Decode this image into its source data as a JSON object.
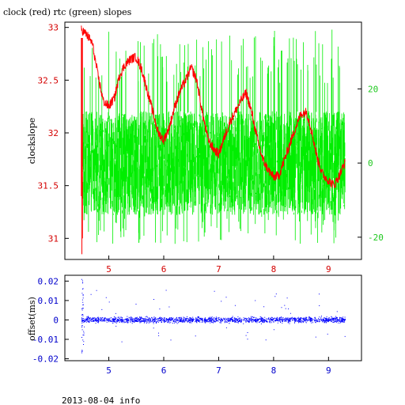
{
  "title": "clock (red) rtc (green) slopes",
  "footer": "2013-08-04 info",
  "colors": {
    "clock": "#ff0000",
    "rtc": "#00ee00",
    "offset": "#0000ff",
    "red_axis": "#d40000",
    "green_axis": "#1ec81e",
    "blue_axis": "#0000cc"
  },
  "chart_data": [
    {
      "type": "line",
      "ylabel": "clockslope",
      "xlim": [
        4.2,
        9.6
      ],
      "x_ticks": [
        "5",
        "6",
        "7",
        "8",
        "9"
      ],
      "ylim_left": [
        30.8,
        33.05
      ],
      "ylim_right": [
        -26,
        38
      ],
      "y_ticks_left": [
        "33",
        "32.5",
        "32",
        "31.5",
        "31"
      ],
      "y_ticks_right": [
        "20",
        "0",
        "-20"
      ],
      "grid": false,
      "series": [
        {
          "name": "clock",
          "axis": "left",
          "x": [
            4.5,
            4.6,
            4.7,
            4.8,
            4.9,
            5.0,
            5.1,
            5.2,
            5.3,
            5.4,
            5.5,
            5.6,
            5.7,
            5.8,
            5.9,
            6.0,
            6.1,
            6.2,
            6.3,
            6.4,
            6.5,
            6.6,
            6.7,
            6.8,
            6.9,
            7.0,
            7.1,
            7.2,
            7.3,
            7.4,
            7.5,
            7.6,
            7.7,
            7.8,
            7.9,
            8.0,
            8.1,
            8.2,
            8.3,
            8.4,
            8.5,
            8.6,
            8.7,
            8.8,
            8.9,
            9.0,
            9.1,
            9.2,
            9.3
          ],
          "values": [
            32.98,
            32.93,
            32.85,
            32.55,
            32.3,
            32.25,
            32.33,
            32.55,
            32.65,
            32.7,
            32.72,
            32.6,
            32.4,
            32.2,
            32.0,
            31.93,
            32.05,
            32.25,
            32.4,
            32.5,
            32.62,
            32.5,
            32.2,
            31.95,
            31.85,
            31.8,
            31.95,
            32.1,
            32.2,
            32.3,
            32.38,
            32.2,
            31.95,
            31.75,
            31.65,
            31.58,
            31.6,
            31.75,
            31.9,
            32.05,
            32.18,
            32.2,
            32.0,
            31.75,
            31.6,
            31.55,
            31.5,
            31.6,
            31.72
          ]
        },
        {
          "name": "rtc",
          "axis": "right",
          "x_range": [
            4.5,
            9.3
          ],
          "center": 0,
          "amplitude": 14,
          "spike_max": 36,
          "spike_min": -22
        }
      ]
    },
    {
      "type": "scatter",
      "ylabel": "offset(ms)",
      "xlim": [
        4.2,
        9.6
      ],
      "x_ticks": [
        "5",
        "6",
        "7",
        "8",
        "9"
      ],
      "ylim": [
        -0.021,
        0.023
      ],
      "y_ticks": [
        "0.02",
        "0.01",
        "0",
        "-0.01",
        "-0.02"
      ],
      "series": [
        {
          "name": "offset",
          "x_range": [
            4.5,
            9.3
          ],
          "center": 0.0,
          "spread": 0.0015,
          "spike_max": 0.021,
          "spike_min": -0.017
        }
      ]
    }
  ]
}
